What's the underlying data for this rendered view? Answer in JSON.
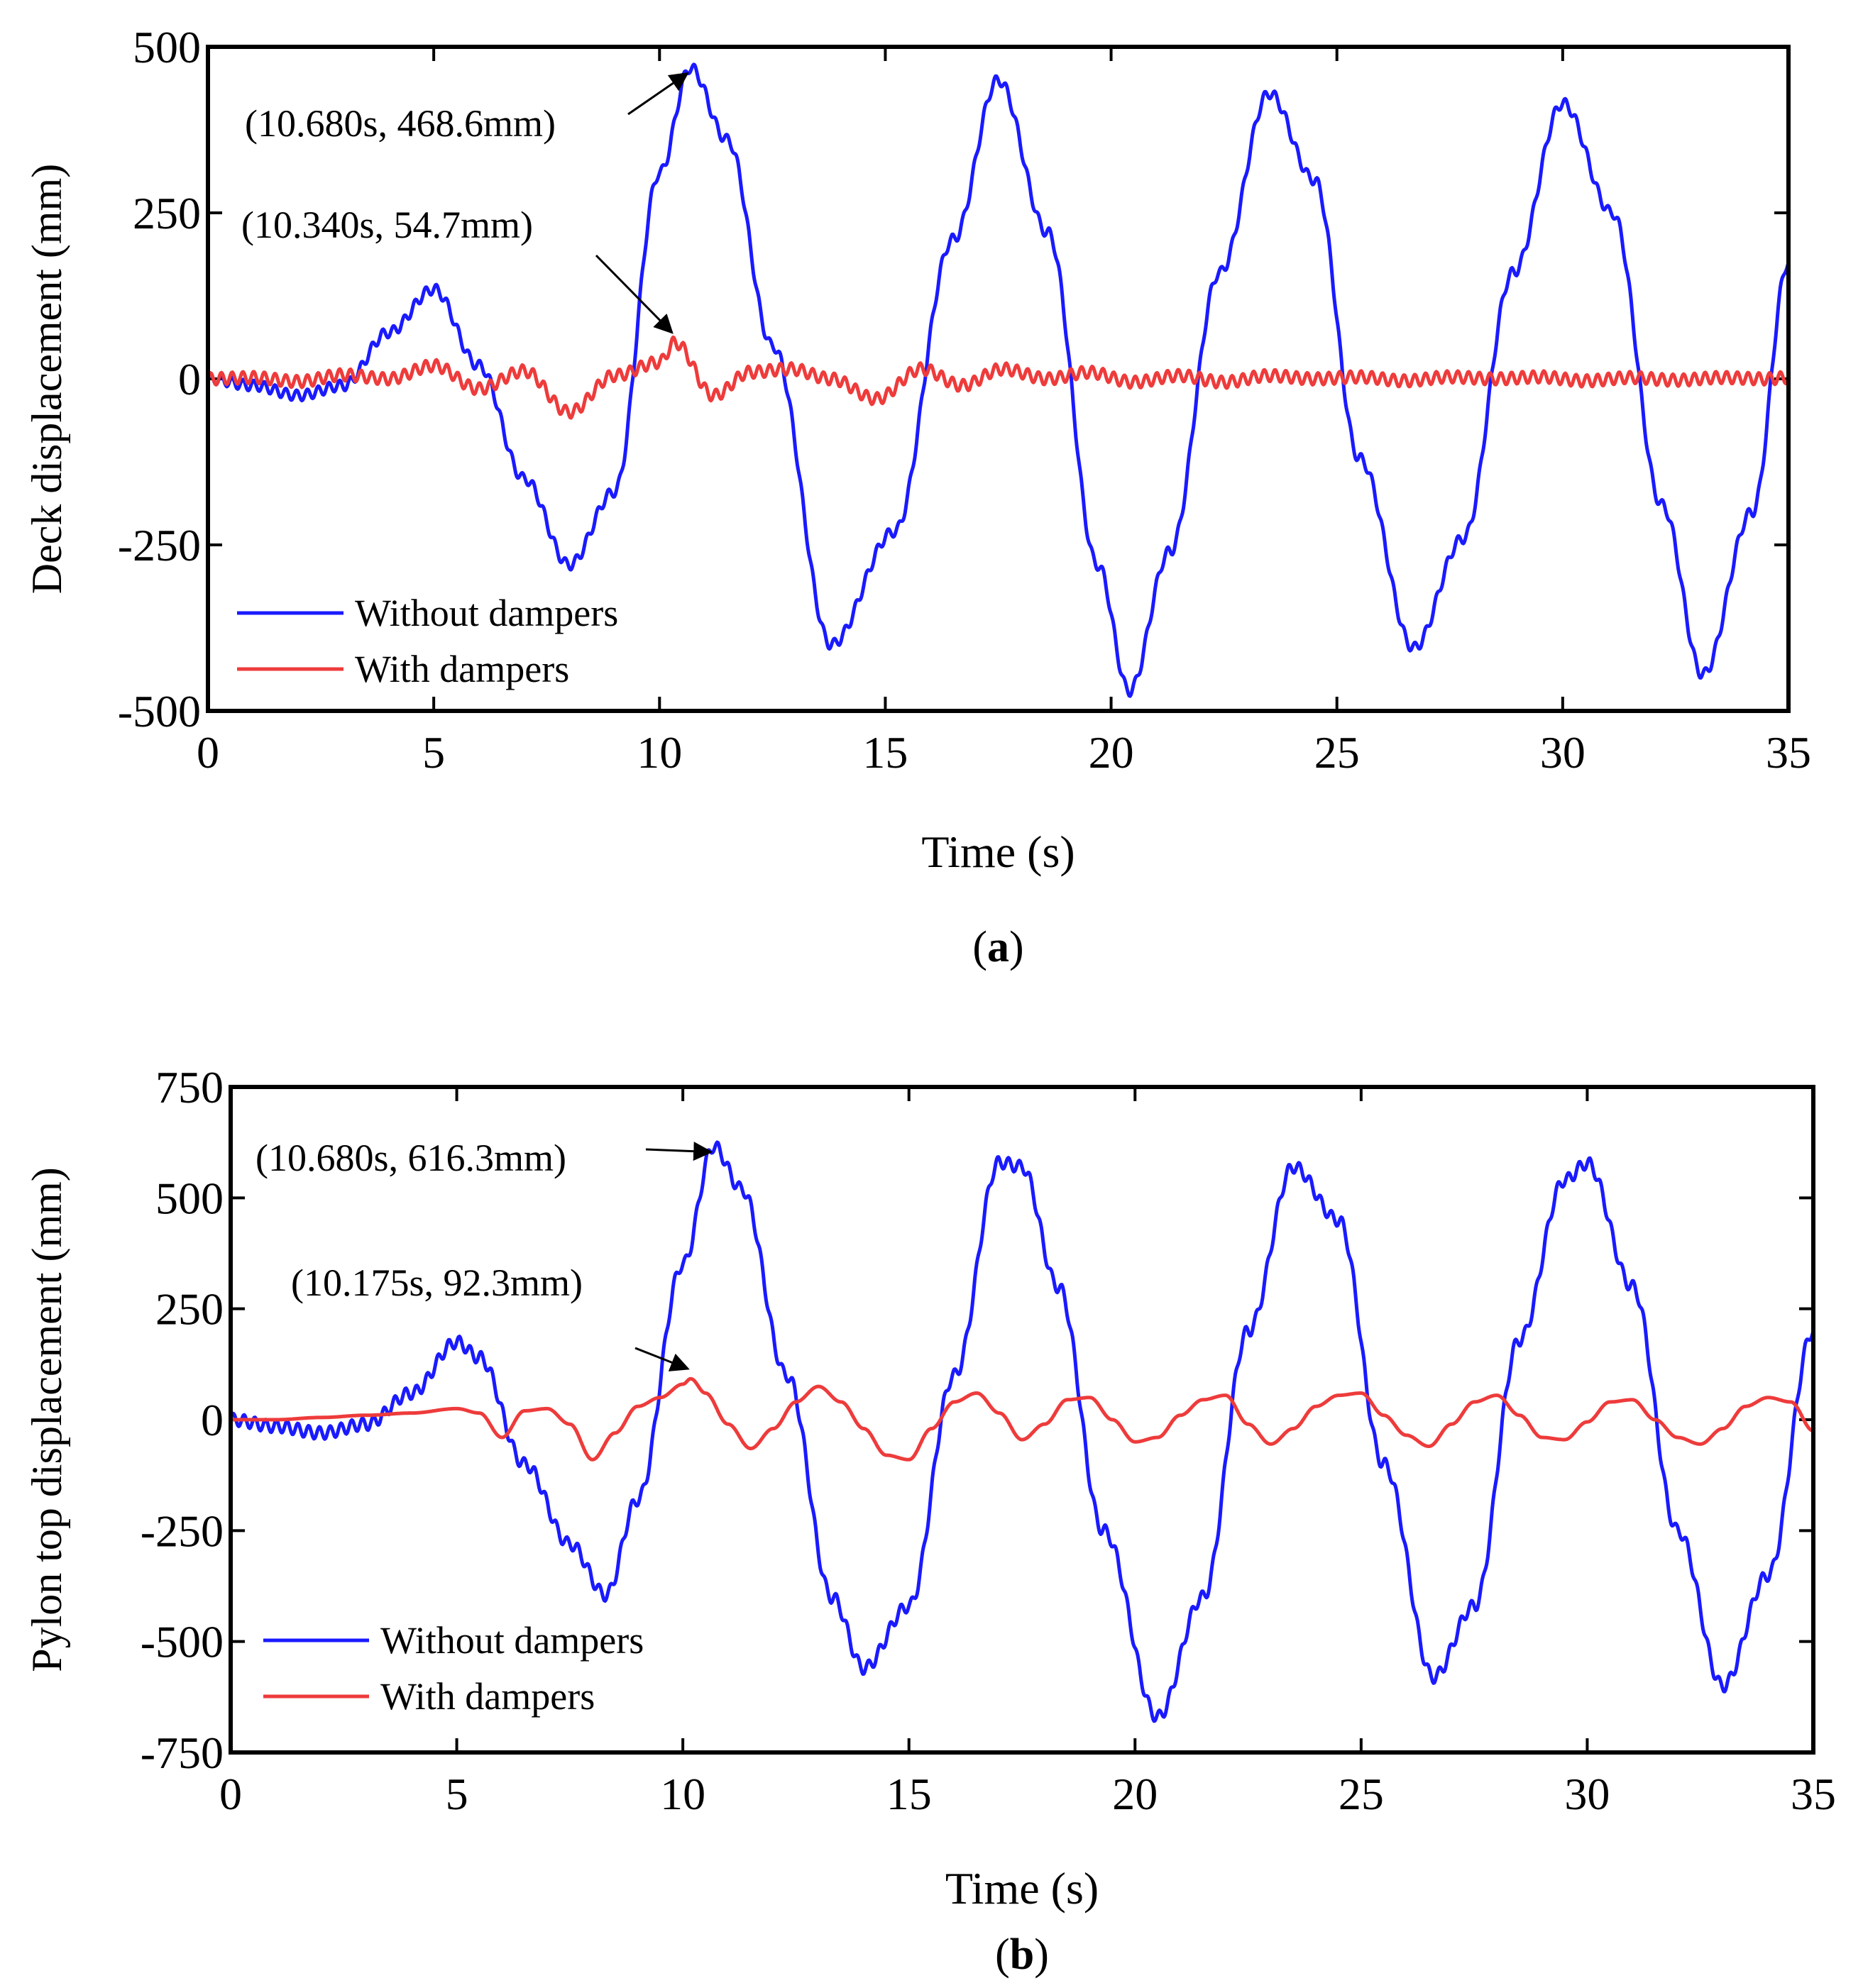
{
  "figure": {
    "background": "#ffffff"
  },
  "chart_data": [
    {
      "panel": "(a)",
      "panel_letter": "a",
      "type": "line",
      "xlabel": "Time (s)",
      "ylabel": "Deck displacement (mm)",
      "xlim": [
        0,
        35
      ],
      "ylim": [
        -500,
        500
      ],
      "xticks": [
        0,
        5,
        10,
        15,
        20,
        25,
        30,
        35
      ],
      "yticks": [
        -500,
        -250,
        0,
        250,
        500
      ],
      "legend": {
        "placement": "bottom-left",
        "entries": [
          "Without dampers",
          "With dampers"
        ]
      },
      "series": [
        {
          "name": "Without dampers",
          "color": "#1a1aff",
          "ripple": 8,
          "x": [
            0,
            1,
            2,
            3,
            4,
            5,
            6,
            7,
            8,
            9,
            10,
            10.68,
            11.5,
            12.5,
            13.8,
            15.2,
            16.5,
            17.5,
            18.6,
            19.7,
            20.4,
            21.3,
            22.4,
            23.5,
            24.5,
            25.5,
            26.7,
            27.8,
            28.9,
            30,
            31.1,
            32.2,
            33.1,
            34.2,
            35
          ],
          "values": [
            0,
            -10,
            -25,
            -10,
            70,
            135,
            20,
            -150,
            -280,
            -170,
            310,
            468.6,
            360,
            50,
            -400,
            -230,
            210,
            450,
            220,
            -280,
            -470,
            -260,
            160,
            430,
            300,
            -120,
            -405,
            -240,
            160,
            415,
            250,
            -190,
            -445,
            -200,
            175
          ]
        },
        {
          "name": "With dampers",
          "color": "#ee3b3b",
          "ripple": 9,
          "x": [
            0,
            1,
            2,
            3,
            4,
            5,
            6,
            7,
            8,
            9,
            10,
            10.34,
            11.2,
            12,
            12.9,
            13.8,
            14.8,
            15.8,
            16.7,
            17.6,
            18.6,
            19.5,
            20.5,
            21.5,
            22.5,
            23.5,
            24.5,
            25.5,
            26.5,
            27.5,
            28.5,
            29.5,
            30.5,
            31.5,
            32.5,
            33.5,
            34.5,
            35
          ],
          "values": [
            0,
            2,
            -4,
            6,
            0,
            20,
            -15,
            12,
            -50,
            5,
            25,
            54.7,
            -25,
            10,
            15,
            0,
            -30,
            15,
            -10,
            15,
            0,
            10,
            -5,
            5,
            -5,
            5,
            0,
            3,
            -3,
            3,
            0,
            3,
            -3,
            2,
            -2,
            2,
            0,
            2
          ]
        }
      ],
      "annotations": [
        {
          "text": "(10.680s, 468.6mm)",
          "x": 10.68,
          "y": 468.6
        },
        {
          "text": "(10.340s, 54.7mm)",
          "x": 10.34,
          "y": 54.7
        }
      ]
    },
    {
      "panel": "(b)",
      "panel_letter": "b",
      "type": "line",
      "xlabel": "Time (s)",
      "ylabel": "Pylon top displacement (mm)",
      "xlim": [
        0,
        35
      ],
      "ylim": [
        -750,
        750
      ],
      "xticks": [
        0,
        5,
        10,
        15,
        20,
        25,
        30,
        35
      ],
      "yticks": [
        -750,
        -500,
        -250,
        0,
        250,
        500,
        750
      ],
      "legend": {
        "placement": "bottom-left",
        "entries": [
          "Without dampers",
          "With dampers"
        ]
      },
      "series": [
        {
          "name": "Without dampers",
          "color": "#1a1aff",
          "ripple": 14,
          "x": [
            0,
            1,
            2,
            3,
            4,
            5,
            5.5,
            6.5,
            7.5,
            8.3,
            9,
            10,
            10.68,
            11.3,
            12.3,
            13.3,
            14,
            15,
            16,
            17,
            17.5,
            18.3,
            19.3,
            20.5,
            21.5,
            22.5,
            23.5,
            24.5,
            25.5,
            26.6,
            27.5,
            28.5,
            29.5,
            30,
            31,
            32,
            33,
            34,
            35
          ],
          "values": [
            0,
            -15,
            -30,
            -10,
            60,
            175,
            140,
            -100,
            -280,
            -395,
            -180,
            350,
            616.3,
            520,
            100,
            -400,
            -560,
            -420,
            100,
            580,
            570,
            300,
            -250,
            -670,
            -400,
            200,
            570,
            450,
            -100,
            -580,
            -420,
            180,
            540,
            578,
            300,
            -250,
            -600,
            -350,
            200
          ]
        },
        {
          "name": "With dampers",
          "color": "#ee3b3b",
          "ripple": 0,
          "x": [
            0,
            1,
            2,
            3,
            4,
            5,
            5.5,
            6,
            6.5,
            7,
            7.5,
            8,
            8.5,
            9,
            9.5,
            10,
            10.175,
            10.5,
            11,
            11.5,
            12,
            12.5,
            13,
            13.5,
            14,
            14.5,
            15,
            15.5,
            16,
            16.5,
            17,
            17.5,
            18,
            18.5,
            19,
            19.5,
            20,
            20.5,
            21,
            21.5,
            22,
            22.5,
            23,
            23.5,
            24,
            24.5,
            25,
            25.5,
            26,
            26.5,
            27,
            27.5,
            28,
            28.5,
            29,
            29.5,
            30,
            30.5,
            31,
            31.5,
            32,
            32.5,
            33,
            33.5,
            34,
            34.5,
            35
          ],
          "values": [
            0,
            0,
            5,
            10,
            15,
            25,
            15,
            -40,
            20,
            25,
            -10,
            -90,
            -30,
            30,
            50,
            80,
            92.3,
            60,
            -10,
            -65,
            -20,
            40,
            75,
            40,
            -20,
            -80,
            -90,
            -20,
            40,
            60,
            15,
            -45,
            -10,
            45,
            50,
            0,
            -50,
            -40,
            10,
            45,
            55,
            -10,
            -55,
            -20,
            30,
            55,
            60,
            10,
            -35,
            -60,
            -10,
            40,
            55,
            10,
            -40,
            -45,
            -5,
            40,
            45,
            0,
            -40,
            -55,
            -20,
            30,
            50,
            40,
            -25
          ]
        }
      ],
      "annotations": [
        {
          "text": "(10.680s, 616.3mm)",
          "x": 10.68,
          "y": 616.3
        },
        {
          "text": "(10.175s, 92.3mm)",
          "x": 10.175,
          "y": 92.3
        }
      ]
    }
  ]
}
